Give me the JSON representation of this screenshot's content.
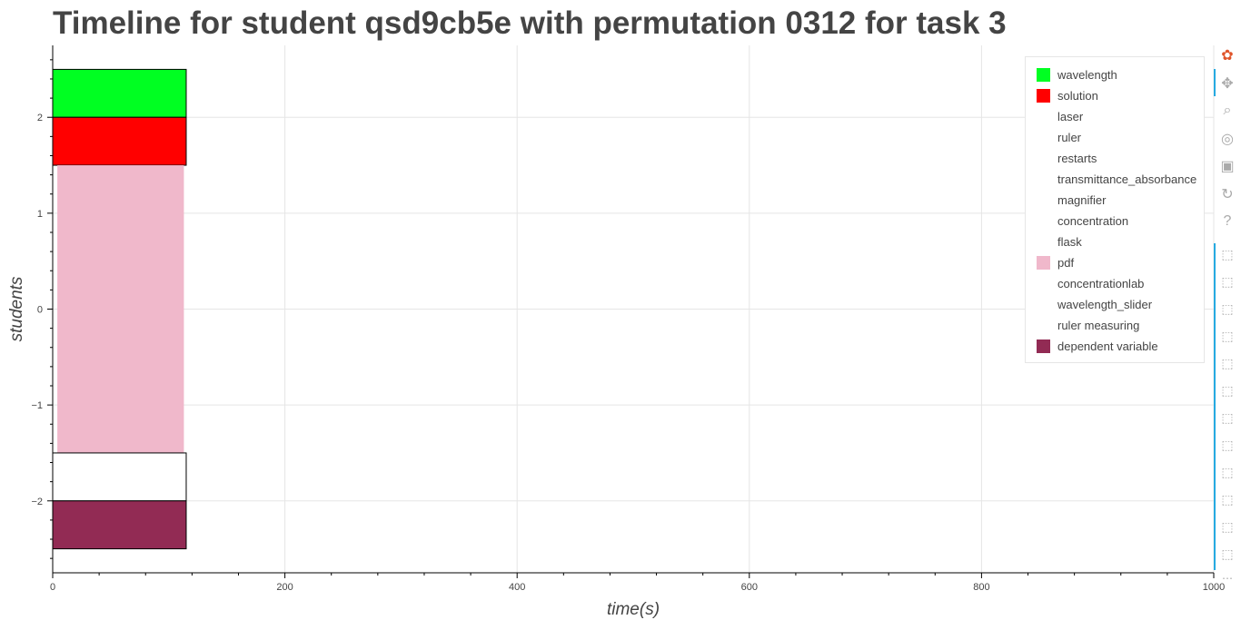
{
  "chart_data": {
    "type": "bar",
    "orientation": "horizontal-timeline",
    "title": "Timeline for student qsd9cb5e with permutation 0312 for task 3",
    "xlabel": "time(s)",
    "ylabel": "students",
    "xlim": [
      0,
      1000
    ],
    "ylim": [
      -2.75,
      2.75
    ],
    "x_ticks": [
      0,
      200,
      400,
      600,
      800,
      1000
    ],
    "y_ticks": [
      2,
      1,
      0,
      -1,
      -2
    ],
    "y_tick_labels": [
      "2",
      "1",
      "0",
      "−1",
      "−2"
    ],
    "grid": true,
    "legend_position": "top-right",
    "series": [
      {
        "name": "wavelength",
        "color": "#00ff22",
        "bars": [
          {
            "start": 0,
            "end": 115,
            "y_bottom": 2.0,
            "y_top": 2.5,
            "outline": true
          }
        ]
      },
      {
        "name": "solution",
        "color": "#ff0000",
        "bars": [
          {
            "start": 0,
            "end": 115,
            "y_bottom": 1.5,
            "y_top": 2.0,
            "outline": true
          }
        ]
      },
      {
        "name": "laser",
        "color": "#ffffff",
        "bars": []
      },
      {
        "name": "ruler",
        "color": "#ffffff",
        "bars": []
      },
      {
        "name": "restarts",
        "color": "#ffffff",
        "bars": []
      },
      {
        "name": "transmittance_absorbance",
        "color": "#ffffff",
        "bars": []
      },
      {
        "name": "magnifier",
        "color": "#ffffff",
        "bars": []
      },
      {
        "name": "concentration",
        "color": "#ffffff",
        "bars": []
      },
      {
        "name": "flask",
        "color": "#ffffff",
        "bars": []
      },
      {
        "name": "pdf",
        "color": "#f0b8cb",
        "bars": [
          {
            "start": 4,
            "end": 113,
            "y_bottom": -1.5,
            "y_top": 1.5,
            "outline": false
          }
        ]
      },
      {
        "name": "concentrationlab",
        "color": "#ffffff",
        "bars": [
          {
            "start": 0,
            "end": 115,
            "y_bottom": -2.0,
            "y_top": -1.5,
            "outline": true
          }
        ]
      },
      {
        "name": "wavelength_slider",
        "color": "#ffffff",
        "bars": []
      },
      {
        "name": "ruler measuring",
        "color": "#ffffff",
        "bars": []
      },
      {
        "name": "dependent variable",
        "color": "#922b54",
        "bars": [
          {
            "start": 0,
            "end": 115,
            "y_bottom": -2.5,
            "y_top": -2.0,
            "outline": true
          }
        ]
      }
    ]
  },
  "toolbar": {
    "tools": [
      {
        "name": "bokeh-logo-icon",
        "glyph": "✿",
        "color": "#e0542a",
        "active": false
      },
      {
        "name": "pan-icon",
        "glyph": "✥",
        "color": "#aaaaaa",
        "active": true
      },
      {
        "name": "box-zoom-icon",
        "glyph": "⌕",
        "color": "#aaaaaa",
        "active": false
      },
      {
        "name": "wheel-zoom-icon",
        "glyph": "◎",
        "color": "#aaaaaa",
        "active": false
      },
      {
        "name": "save-icon",
        "glyph": "▣",
        "color": "#aaaaaa",
        "active": false
      },
      {
        "name": "reset-icon",
        "glyph": "↻",
        "color": "#aaaaaa",
        "active": false
      },
      {
        "name": "help-icon",
        "glyph": "?",
        "color": "#aaaaaa",
        "active": false
      }
    ],
    "hover_tool_count": 12,
    "hover_glyph": "⬚",
    "more_glyph": "⋯"
  }
}
